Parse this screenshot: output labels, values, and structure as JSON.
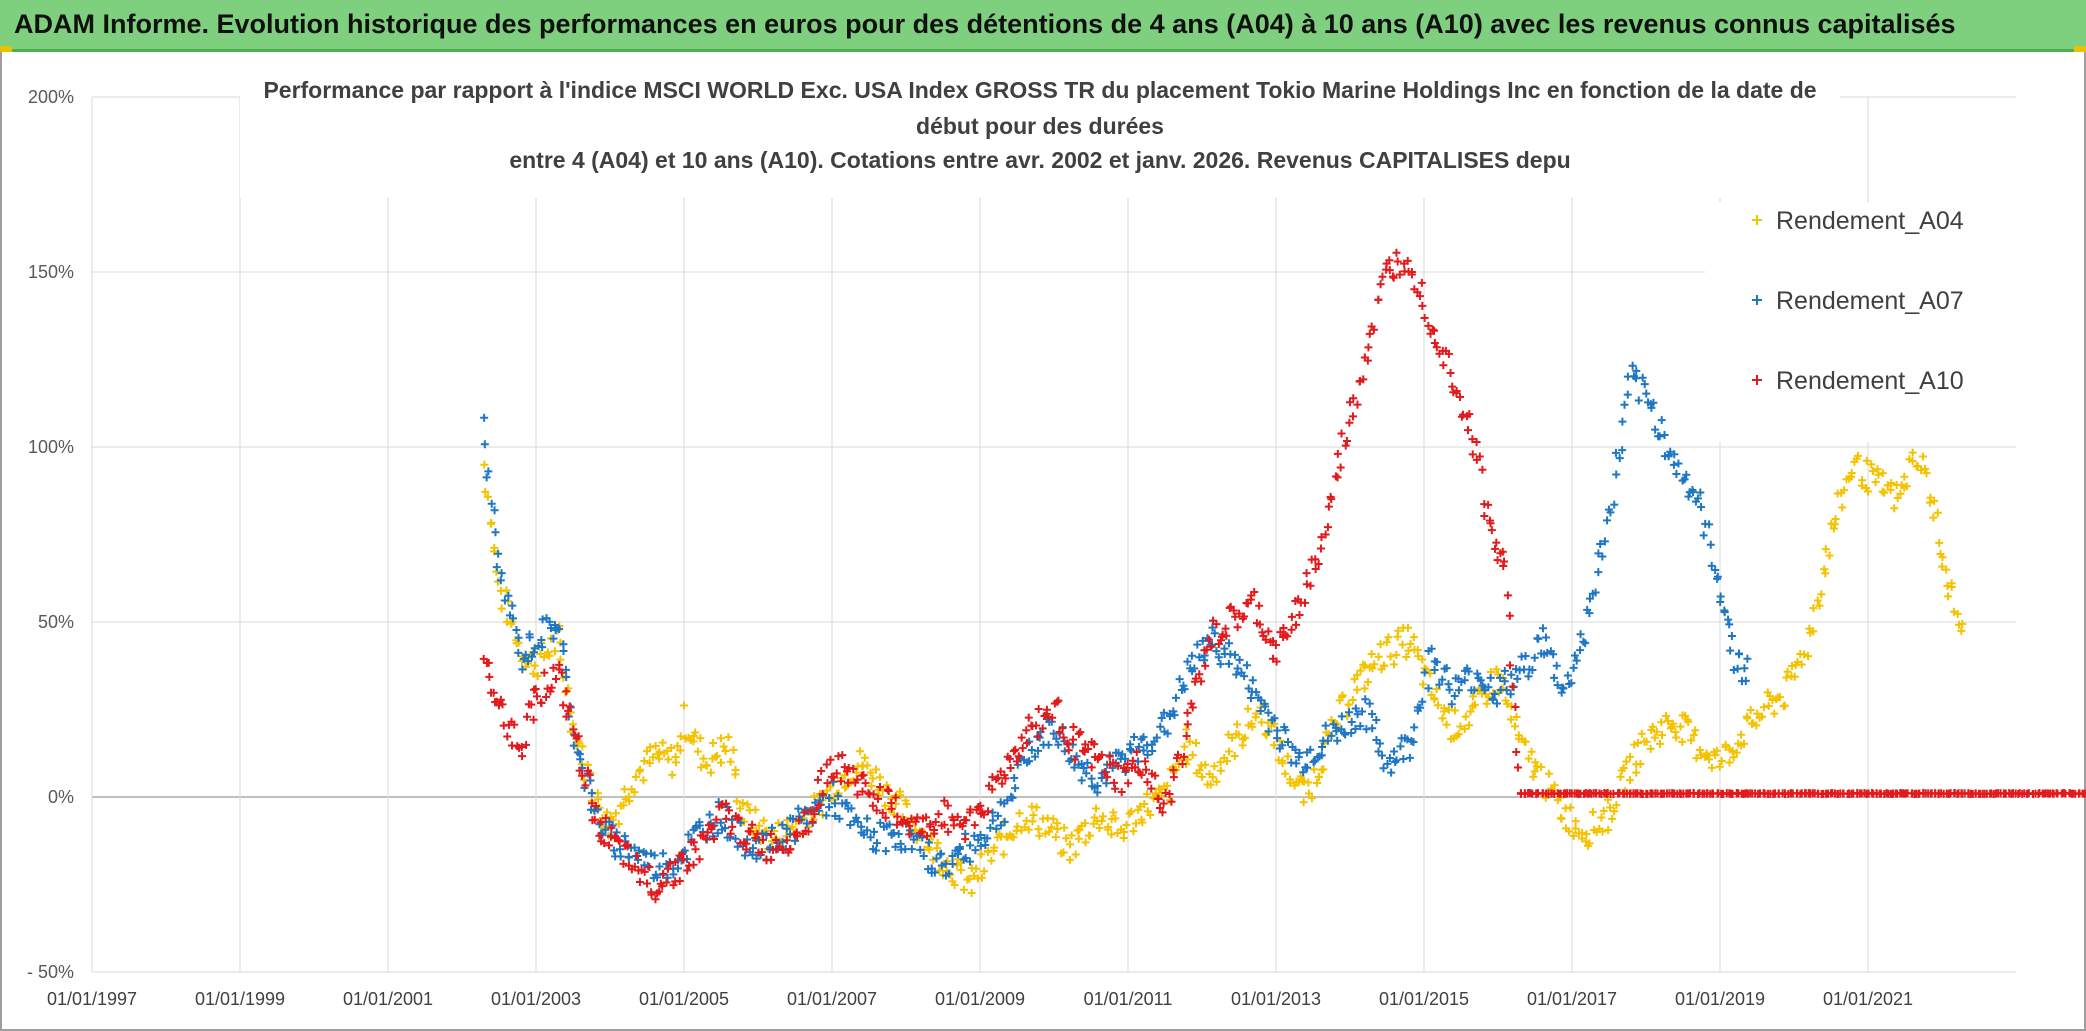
{
  "header": {
    "title": "ADAM Informe. Evolution historique des performances en euros pour des détentions de 4 ans (A04) à 10 ans (A10) avec les revenus connus capitalisés"
  },
  "chart_data": {
    "type": "scatter",
    "title_lines": [
      "Performance par rapport à l'indice MSCI WORLD Exc. USA Index GROSS TR  du placement Tokio Marine Holdings Inc en fonction de la date de",
      "début pour des durées",
      "entre 4 (A04) et 10 ans (A10). Cotations entre avr. 2002 et janv. 2026. Revenus CAPITALISES depu"
    ],
    "xlabel": "",
    "ylabel": "",
    "x_range": [
      1997.0,
      2024.0
    ],
    "ylim": [
      -50,
      200
    ],
    "y_ticks": [
      -50,
      0,
      50,
      100,
      150,
      200
    ],
    "y_tick_labels": [
      "- 50%",
      "0%",
      "50%",
      "100%",
      "150%",
      "200%"
    ],
    "x_ticks": [
      1997,
      1999,
      2001,
      2003,
      2005,
      2007,
      2009,
      2011,
      2013,
      2015,
      2017,
      2019,
      2021
    ],
    "x_tick_labels": [
      "01/01/1997",
      "01/01/1999",
      "01/01/2001",
      "01/01/2003",
      "01/01/2005",
      "01/01/2007",
      "01/01/2009",
      "01/01/2011",
      "01/01/2013",
      "01/01/2015",
      "01/01/2017",
      "01/01/2019",
      "01/01/2021"
    ],
    "grid": true,
    "legend_position": "top-right",
    "marker": "+",
    "series": [
      {
        "name": "Rendement_A04",
        "color": "#f5c200",
        "points": [
          [
            2002.3,
            95
          ],
          [
            2002.5,
            60
          ],
          [
            2002.8,
            42
          ],
          [
            2003.0,
            38
          ],
          [
            2003.3,
            45
          ],
          [
            2003.5,
            20
          ],
          [
            2003.8,
            0
          ],
          [
            2004.0,
            -8
          ],
          [
            2004.3,
            5
          ],
          [
            2004.6,
            12
          ],
          [
            2004.9,
            10
          ],
          [
            2005.0,
            22
          ],
          [
            2005.3,
            10
          ],
          [
            2005.6,
            15
          ],
          [
            2005.8,
            -5
          ],
          [
            2006.2,
            -12
          ],
          [
            2006.5,
            -8
          ],
          [
            2006.8,
            -3
          ],
          [
            2007.1,
            5
          ],
          [
            2007.4,
            10
          ],
          [
            2007.8,
            0
          ],
          [
            2008.2,
            -10
          ],
          [
            2008.6,
            -20
          ],
          [
            2008.9,
            -25
          ],
          [
            2009.2,
            -15
          ],
          [
            2009.6,
            -5
          ],
          [
            2009.9,
            -8
          ],
          [
            2010.2,
            -15
          ],
          [
            2010.6,
            -5
          ],
          [
            2010.9,
            -10
          ],
          [
            2011.2,
            -3
          ],
          [
            2011.5,
            0
          ],
          [
            2011.8,
            15
          ],
          [
            2012.1,
            5
          ],
          [
            2012.4,
            15
          ],
          [
            2012.8,
            25
          ],
          [
            2013.1,
            10
          ],
          [
            2013.4,
            0
          ],
          [
            2013.7,
            15
          ],
          [
            2014.0,
            30
          ],
          [
            2014.4,
            40
          ],
          [
            2014.8,
            45
          ],
          [
            2015.1,
            30
          ],
          [
            2015.4,
            20
          ],
          [
            2015.7,
            25
          ],
          [
            2016.0,
            35
          ],
          [
            2016.3,
            15
          ],
          [
            2016.6,
            5
          ],
          [
            2016.9,
            -5
          ],
          [
            2017.2,
            -10
          ],
          [
            2017.5,
            -5
          ],
          [
            2017.8,
            10
          ],
          [
            2018.1,
            18
          ],
          [
            2018.4,
            22
          ],
          [
            2018.7,
            15
          ],
          [
            2019.0,
            10
          ],
          [
            2019.3,
            18
          ],
          [
            2019.6,
            25
          ],
          [
            2019.9,
            30
          ],
          [
            2020.2,
            45
          ],
          [
            2020.5,
            75
          ],
          [
            2020.8,
            95
          ],
          [
            2021.1,
            90
          ],
          [
            2021.4,
            85
          ],
          [
            2021.7,
            100
          ],
          [
            2021.9,
            80
          ],
          [
            2022.1,
            60
          ],
          [
            2022.3,
            45
          ]
        ]
      },
      {
        "name": "Rendement_A07",
        "color": "#1f77c4",
        "points": [
          [
            2002.3,
            105
          ],
          [
            2002.5,
            65
          ],
          [
            2002.8,
            40
          ],
          [
            2003.0,
            45
          ],
          [
            2003.3,
            50
          ],
          [
            2003.5,
            20
          ],
          [
            2003.8,
            -5
          ],
          [
            2004.0,
            -12
          ],
          [
            2004.3,
            -15
          ],
          [
            2004.6,
            -20
          ],
          [
            2004.9,
            -18
          ],
          [
            2005.2,
            -10
          ],
          [
            2005.5,
            -5
          ],
          [
            2005.8,
            -12
          ],
          [
            2006.1,
            -15
          ],
          [
            2006.4,
            -10
          ],
          [
            2006.7,
            -5
          ],
          [
            2007.0,
            0
          ],
          [
            2007.3,
            -8
          ],
          [
            2007.6,
            -12
          ],
          [
            2007.9,
            -10
          ],
          [
            2008.2,
            -15
          ],
          [
            2008.5,
            -20
          ],
          [
            2008.8,
            -15
          ],
          [
            2009.1,
            -10
          ],
          [
            2009.4,
            0
          ],
          [
            2009.7,
            15
          ],
          [
            2010.0,
            20
          ],
          [
            2010.3,
            10
          ],
          [
            2010.6,
            5
          ],
          [
            2010.9,
            10
          ],
          [
            2011.2,
            15
          ],
          [
            2011.5,
            20
          ],
          [
            2011.8,
            35
          ],
          [
            2012.1,
            45
          ],
          [
            2012.4,
            40
          ],
          [
            2012.7,
            30
          ],
          [
            2013.0,
            20
          ],
          [
            2013.3,
            10
          ],
          [
            2013.6,
            15
          ],
          [
            2013.9,
            20
          ],
          [
            2014.2,
            25
          ],
          [
            2014.5,
            10
          ],
          [
            2014.8,
            15
          ],
          [
            2015.1,
            40
          ],
          [
            2015.4,
            30
          ],
          [
            2015.7,
            35
          ],
          [
            2016.0,
            30
          ],
          [
            2016.3,
            35
          ],
          [
            2016.6,
            45
          ],
          [
            2016.9,
            30
          ],
          [
            2017.2,
            50
          ],
          [
            2017.5,
            80
          ],
          [
            2017.8,
            120
          ],
          [
            2018.1,
            110
          ],
          [
            2018.4,
            95
          ],
          [
            2018.7,
            85
          ],
          [
            2019.0,
            60
          ],
          [
            2019.2,
            40
          ],
          [
            2019.4,
            35
          ]
        ]
      },
      {
        "name": "Rendement_A10",
        "color": "#e31a1c",
        "points": [
          [
            2002.3,
            40
          ],
          [
            2002.5,
            25
          ],
          [
            2002.8,
            15
          ],
          [
            2003.0,
            30
          ],
          [
            2003.3,
            35
          ],
          [
            2003.5,
            20
          ],
          [
            2003.8,
            -5
          ],
          [
            2004.0,
            -12
          ],
          [
            2004.3,
            -20
          ],
          [
            2004.6,
            -25
          ],
          [
            2004.9,
            -20
          ],
          [
            2005.2,
            -15
          ],
          [
            2005.5,
            -5
          ],
          [
            2005.8,
            -10
          ],
          [
            2006.1,
            -15
          ],
          [
            2006.4,
            -12
          ],
          [
            2006.7,
            -5
          ],
          [
            2007.0,
            10
          ],
          [
            2007.3,
            5
          ],
          [
            2007.6,
            0
          ],
          [
            2007.9,
            -5
          ],
          [
            2008.2,
            -10
          ],
          [
            2008.5,
            -5
          ],
          [
            2008.8,
            -8
          ],
          [
            2009.1,
            0
          ],
          [
            2009.4,
            10
          ],
          [
            2009.7,
            20
          ],
          [
            2010.0,
            25
          ],
          [
            2010.3,
            15
          ],
          [
            2010.6,
            10
          ],
          [
            2010.9,
            5
          ],
          [
            2011.2,
            10
          ],
          [
            2011.5,
            -5
          ],
          [
            2011.8,
            20
          ],
          [
            2012.1,
            45
          ],
          [
            2012.4,
            50
          ],
          [
            2012.7,
            55
          ],
          [
            2013.0,
            40
          ],
          [
            2013.3,
            55
          ],
          [
            2013.6,
            70
          ],
          [
            2013.9,
            100
          ],
          [
            2014.2,
            125
          ],
          [
            2014.5,
            150
          ],
          [
            2014.8,
            155
          ],
          [
            2015.1,
            135
          ],
          [
            2015.4,
            120
          ],
          [
            2015.7,
            100
          ],
          [
            2015.9,
            75
          ],
          [
            2016.1,
            65
          ],
          [
            2016.3,
            1
          ],
          [
            2017.0,
            1
          ],
          [
            2018.0,
            1
          ],
          [
            2019.0,
            1
          ],
          [
            2020.0,
            1
          ],
          [
            2021.0,
            1
          ],
          [
            2022.0,
            1
          ],
          [
            2023.0,
            1
          ],
          [
            2024.0,
            1
          ]
        ]
      }
    ]
  }
}
